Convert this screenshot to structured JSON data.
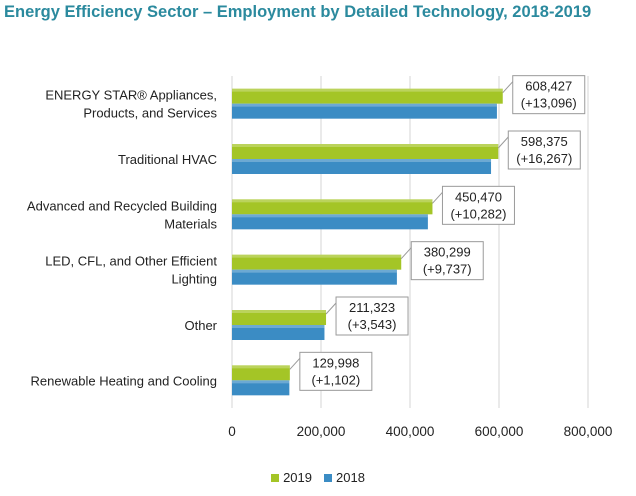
{
  "title": "Energy Efficiency Sector – Employment by Detailed Technology, 2018-2019",
  "chart_data": {
    "type": "bar",
    "orientation": "horizontal",
    "categories": [
      [
        "ENERGY STAR® Appliances,",
        "Products, and Services"
      ],
      [
        "Traditional HVAC"
      ],
      [
        "Advanced and Recycled Building",
        "Materials"
      ],
      [
        "LED, CFL, and Other Efficient",
        "Lighting"
      ],
      [
        "Other"
      ],
      [
        "Renewable Heating and Cooling"
      ]
    ],
    "series": [
      {
        "name": "2019",
        "color": "#a4c526",
        "values": [
          608427,
          598375,
          450470,
          380299,
          211323,
          129998
        ]
      },
      {
        "name": "2018",
        "color": "#3b8cc4",
        "values": [
          595331,
          582108,
          440188,
          370562,
          207780,
          128896
        ]
      }
    ],
    "data_labels": [
      [
        "608,427",
        "(+13,096)"
      ],
      [
        "598,375",
        "(+16,267)"
      ],
      [
        "450,470",
        "(+10,282)"
      ],
      [
        "380,299",
        "(+9,737)"
      ],
      [
        "211,323",
        "(+3,543)"
      ],
      [
        "129,998",
        "(+1,102)"
      ]
    ],
    "x_ticks": [
      {
        "value": 0,
        "label": "0"
      },
      {
        "value": 200000,
        "label": "200,000"
      },
      {
        "value": 400000,
        "label": "400,000"
      },
      {
        "value": 600000,
        "label": "600,000"
      },
      {
        "value": 800000,
        "label": "800,000"
      }
    ],
    "xlim": [
      0,
      800000
    ],
    "grid": true,
    "legend_position": "bottom"
  }
}
